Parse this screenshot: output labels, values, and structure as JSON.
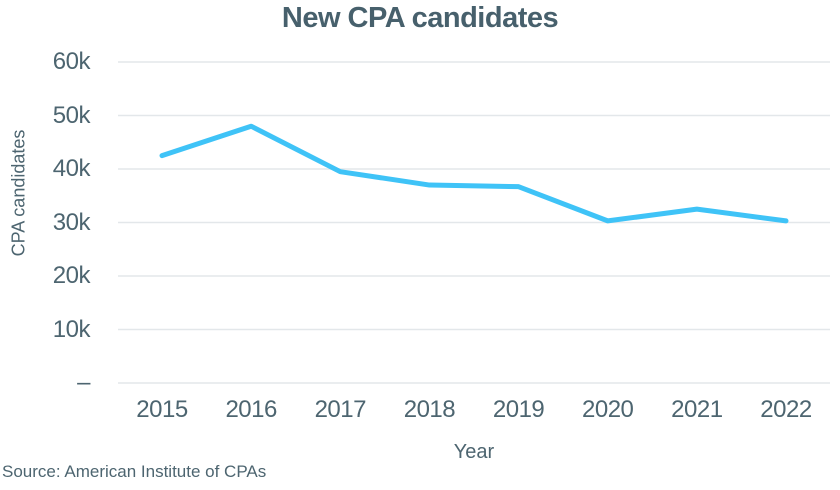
{
  "colors": {
    "line": "#3fc3f7",
    "gridline": "#e3e7ea",
    "text": "#4d6570",
    "title_text": "#47606c",
    "background": "#ffffff"
  },
  "source": "Source: American Institute of CPAs",
  "chart_data": {
    "type": "line",
    "title": "New CPA candidates",
    "xlabel": "Year",
    "ylabel": "CPA candidates",
    "categories": [
      "2015",
      "2016",
      "2017",
      "2018",
      "2019",
      "2020",
      "2021",
      "2022"
    ],
    "series": [
      {
        "name": "New CPA candidates",
        "values": [
          42500,
          48000,
          39500,
          37000,
          36700,
          30300,
          32500,
          30300
        ]
      }
    ],
    "ylim": [
      0,
      60000
    ],
    "yticks": [
      {
        "value": 0,
        "label": "–"
      },
      {
        "value": 10000,
        "label": "10k"
      },
      {
        "value": 20000,
        "label": "20k"
      },
      {
        "value": 30000,
        "label": "30k"
      },
      {
        "value": 40000,
        "label": "40k"
      },
      {
        "value": 50000,
        "label": "50k"
      },
      {
        "value": 60000,
        "label": "60k"
      }
    ],
    "grid": "horizontal",
    "legend": "none"
  }
}
